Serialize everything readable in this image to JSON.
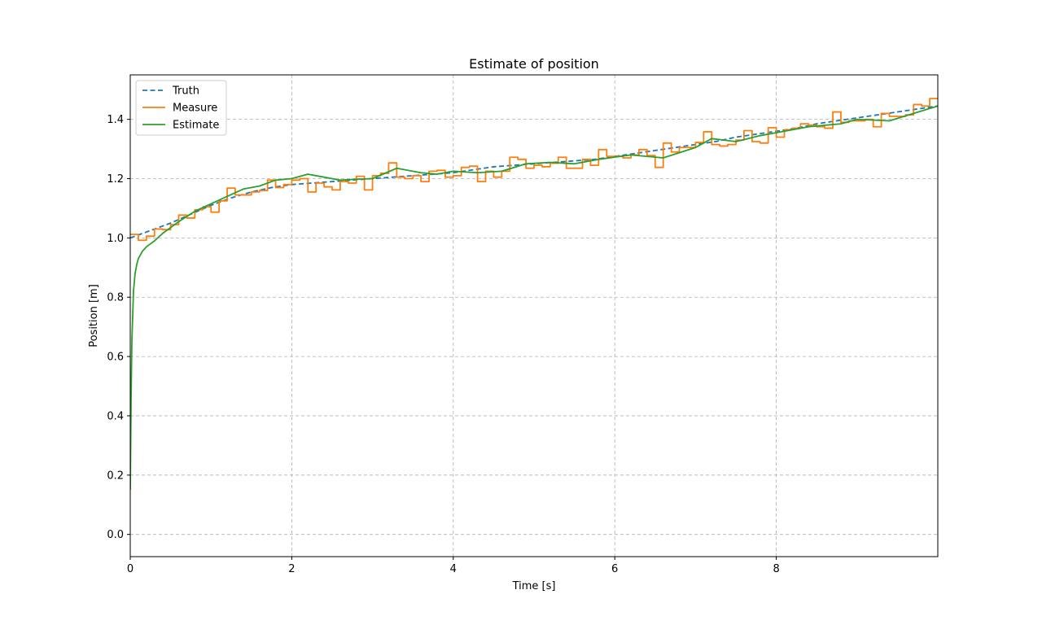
{
  "chart_data": {
    "type": "line",
    "title": "Estimate of position",
    "xlabel": "Time [s]",
    "ylabel": "Position [m]",
    "xlim": [
      0,
      10
    ],
    "ylim": [
      -0.075,
      1.55
    ],
    "xticks": [
      0,
      2,
      4,
      6,
      8
    ],
    "yticks": [
      0.0,
      0.2,
      0.4,
      0.6,
      0.8,
      1.0,
      1.2,
      1.4
    ],
    "grid": true,
    "legend_position": "upper-left",
    "series": [
      {
        "name": "Truth",
        "color": "#1f77b4",
        "style": "dashed",
        "x": [
          0,
          0.25,
          0.5,
          0.75,
          1.0,
          1.25,
          1.5,
          1.75,
          2.0,
          2.25,
          2.5,
          2.75,
          3.0,
          3.25,
          3.5,
          3.75,
          4.0,
          4.25,
          4.5,
          4.75,
          5.0,
          5.25,
          5.5,
          5.75,
          6.0,
          6.25,
          6.5,
          6.75,
          7.0,
          7.25,
          7.5,
          7.75,
          8.0,
          8.25,
          8.5,
          8.75,
          9.0,
          9.25,
          9.5,
          9.75,
          10.0
        ],
        "y": [
          1.0,
          1.025,
          1.05,
          1.08,
          1.11,
          1.135,
          1.155,
          1.17,
          1.18,
          1.185,
          1.19,
          1.195,
          1.2,
          1.205,
          1.21,
          1.215,
          1.22,
          1.23,
          1.24,
          1.245,
          1.25,
          1.255,
          1.26,
          1.265,
          1.275,
          1.285,
          1.295,
          1.305,
          1.315,
          1.325,
          1.34,
          1.35,
          1.36,
          1.37,
          1.385,
          1.395,
          1.405,
          1.415,
          1.425,
          1.435,
          1.445
        ]
      },
      {
        "name": "Measure",
        "color": "#ff7f0e",
        "style": "steps",
        "x": [
          0,
          0.1,
          0.2,
          0.3,
          0.4,
          0.5,
          0.6,
          0.7,
          0.8,
          0.9,
          1.0,
          1.1,
          1.2,
          1.3,
          1.4,
          1.5,
          1.6,
          1.7,
          1.8,
          1.9,
          2.0,
          2.1,
          2.2,
          2.3,
          2.4,
          2.5,
          2.6,
          2.7,
          2.8,
          2.9,
          3.0,
          3.1,
          3.2,
          3.3,
          3.4,
          3.5,
          3.6,
          3.7,
          3.8,
          3.9,
          4.0,
          4.1,
          4.2,
          4.3,
          4.4,
          4.5,
          4.6,
          4.7,
          4.8,
          4.9,
          5.0,
          5.1,
          5.2,
          5.3,
          5.4,
          5.5,
          5.6,
          5.7,
          5.8,
          5.9,
          6.0,
          6.1,
          6.2,
          6.3,
          6.4,
          6.5,
          6.6,
          6.7,
          6.8,
          6.9,
          7.0,
          7.1,
          7.2,
          7.3,
          7.4,
          7.5,
          7.6,
          7.7,
          7.8,
          7.9,
          8.0,
          8.1,
          8.2,
          8.3,
          8.4,
          8.5,
          8.6,
          8.7,
          8.8,
          8.9,
          9.0,
          9.1,
          9.2,
          9.3,
          9.4,
          9.5,
          9.6,
          9.7,
          9.8,
          9.9,
          10.0
        ],
        "y": [
          1.012,
          0.992,
          1.006,
          1.03,
          1.028,
          1.045,
          1.077,
          1.067,
          1.095,
          1.105,
          1.087,
          1.125,
          1.168,
          1.145,
          1.145,
          1.155,
          1.16,
          1.195,
          1.17,
          1.18,
          1.195,
          1.2,
          1.155,
          1.185,
          1.172,
          1.162,
          1.19,
          1.185,
          1.208,
          1.162,
          1.21,
          1.218,
          1.253,
          1.205,
          1.2,
          1.21,
          1.19,
          1.225,
          1.228,
          1.205,
          1.21,
          1.238,
          1.242,
          1.19,
          1.225,
          1.205,
          1.225,
          1.272,
          1.265,
          1.235,
          1.245,
          1.24,
          1.252,
          1.272,
          1.235,
          1.235,
          1.265,
          1.245,
          1.298,
          1.275,
          1.275,
          1.27,
          1.28,
          1.298,
          1.278,
          1.238,
          1.32,
          1.29,
          1.305,
          1.305,
          1.322,
          1.358,
          1.315,
          1.31,
          1.315,
          1.33,
          1.362,
          1.325,
          1.32,
          1.372,
          1.34,
          1.365,
          1.37,
          1.385,
          1.38,
          1.375,
          1.37,
          1.425,
          1.39,
          1.395,
          1.395,
          1.4,
          1.375,
          1.42,
          1.41,
          1.41,
          1.415,
          1.45,
          1.445,
          1.47,
          1.47
        ]
      },
      {
        "name": "Estimate",
        "color": "#2ca02c",
        "style": "solid",
        "x": [
          0,
          0.01,
          0.02,
          0.04,
          0.06,
          0.08,
          0.1,
          0.15,
          0.2,
          0.3,
          0.4,
          0.5,
          0.6,
          0.8,
          1.0,
          1.2,
          1.4,
          1.6,
          1.8,
          2.0,
          2.2,
          2.4,
          2.6,
          2.8,
          3.0,
          3.3,
          3.6,
          3.8,
          4.0,
          4.3,
          4.6,
          4.9,
          5.2,
          5.5,
          5.8,
          6.2,
          6.6,
          7.0,
          7.2,
          7.5,
          7.8,
          8.1,
          8.4,
          8.8,
          9.0,
          9.4,
          9.7,
          10.0
        ],
        "y": [
          0.15,
          0.45,
          0.65,
          0.82,
          0.88,
          0.91,
          0.93,
          0.955,
          0.97,
          0.99,
          1.015,
          1.035,
          1.055,
          1.09,
          1.115,
          1.14,
          1.165,
          1.175,
          1.195,
          1.2,
          1.215,
          1.205,
          1.195,
          1.198,
          1.2,
          1.235,
          1.22,
          1.215,
          1.225,
          1.22,
          1.225,
          1.25,
          1.255,
          1.25,
          1.265,
          1.28,
          1.27,
          1.305,
          1.335,
          1.325,
          1.345,
          1.36,
          1.375,
          1.385,
          1.4,
          1.395,
          1.42,
          1.445
        ]
      }
    ]
  }
}
